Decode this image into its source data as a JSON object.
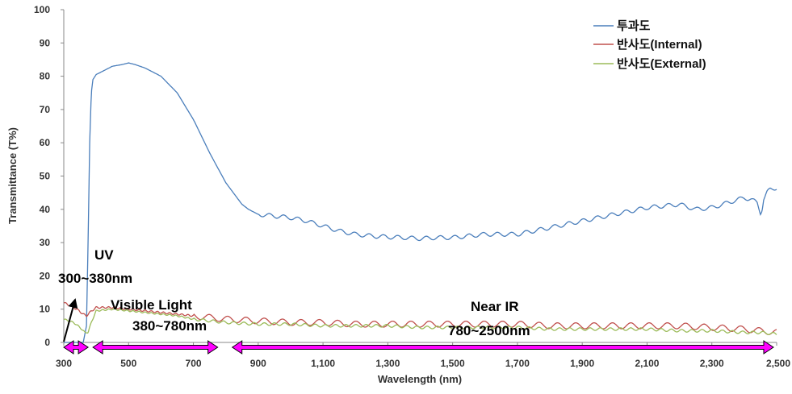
{
  "chart_data": {
    "type": "line",
    "xlabel": "Wavelength (nm)",
    "ylabel": "Transmittance (T%)",
    "xlim": [
      300,
      2500
    ],
    "ylim": [
      0,
      100
    ],
    "x_ticks": [
      300,
      500,
      700,
      900,
      1100,
      1300,
      1500,
      1700,
      1900,
      2100,
      2300,
      2500
    ],
    "x_tick_labels": [
      "300",
      "500",
      "700",
      "900",
      "1,100",
      "1,300",
      "1,500",
      "1,700",
      "1,900",
      "2,100",
      "2,300",
      "2,500"
    ],
    "y_ticks": [
      0,
      10,
      20,
      30,
      40,
      50,
      60,
      70,
      80,
      90,
      100
    ],
    "y_tick_labels": [
      "0",
      "10",
      "20",
      "30",
      "40",
      "50",
      "60",
      "70",
      "80",
      "90",
      "100"
    ],
    "grid": false,
    "legend_position": "top-right",
    "series": [
      {
        "name": "투과도",
        "color": "#4a7ebb",
        "x": [
          300,
          360,
          370,
          375,
          380,
          385,
          390,
          400,
          420,
          450,
          480,
          500,
          520,
          550,
          580,
          600,
          650,
          700,
          750,
          800,
          850,
          870,
          900,
          950,
          1000,
          1050,
          1100,
          1150,
          1200,
          1250,
          1300,
          1350,
          1400,
          1450,
          1500,
          1550,
          1600,
          1650,
          1700,
          1750,
          1800,
          1850,
          1900,
          1950,
          2000,
          2050,
          2100,
          2150,
          2200,
          2250,
          2300,
          2350,
          2400,
          2420,
          2440,
          2450,
          2455,
          2460,
          2470,
          2480,
          2500
        ],
        "y": [
          0,
          0,
          5,
          30,
          60,
          75,
          79,
          80.5,
          81.5,
          83,
          83.5,
          84,
          83.5,
          82.5,
          81,
          80,
          75,
          67,
          57,
          48,
          41.5,
          40,
          38.5,
          38,
          37.5,
          36.5,
          35,
          33.5,
          32.5,
          32,
          31.7,
          31.5,
          31.2,
          31.5,
          31.5,
          32,
          32.5,
          32.5,
          32.5,
          33.5,
          34.5,
          35.5,
          36.5,
          37.5,
          38.5,
          39.5,
          40.5,
          41,
          41.5,
          40,
          40.5,
          42,
          43.5,
          43,
          42,
          39,
          40,
          43,
          45,
          46,
          46.5
        ]
      },
      {
        "name": "반사도(Internal)",
        "color": "#c0504d",
        "x": [
          300,
          340,
          360,
          370,
          380,
          400,
          450,
          500,
          550,
          600,
          650,
          700,
          750,
          800,
          900,
          1000,
          1100,
          1200,
          1300,
          1400,
          1500,
          1600,
          1700,
          1800,
          1900,
          2000,
          2100,
          2200,
          2300,
          2400,
          2450,
          2500
        ],
        "y": [
          12,
          10,
          8.5,
          8,
          9,
          10.5,
          10.5,
          10,
          9.5,
          9,
          8.5,
          8,
          7.5,
          7,
          6.5,
          6,
          6,
          5.5,
          5.5,
          5.5,
          5.5,
          5.5,
          5.5,
          5,
          5,
          5,
          5,
          5,
          4.5,
          4,
          3.5,
          3
        ]
      },
      {
        "name": "반사도(External)",
        "color": "#9bbb59",
        "x": [
          300,
          330,
          350,
          365,
          375,
          385,
          400,
          450,
          500,
          550,
          600,
          650,
          700,
          750,
          800,
          900,
          1000,
          1100,
          1200,
          1300,
          1400,
          1500,
          1600,
          1700,
          1800,
          1900,
          2000,
          2100,
          2200,
          2300,
          2400,
          2450,
          2500
        ],
        "y": [
          7,
          6,
          4.5,
          3,
          3,
          6,
          9.5,
          10,
          9.5,
          9,
          8.5,
          8,
          7,
          6.5,
          6,
          5.5,
          5.5,
          5,
          5,
          5,
          4.5,
          4.5,
          4.5,
          4.5,
          4,
          4,
          4,
          4,
          3.5,
          3.5,
          3,
          3,
          2.5
        ]
      }
    ],
    "annotations": {
      "uv_title": "UV",
      "uv_range": "300~380nm",
      "vis_title": "Visible Light",
      "vis_range": "380~780nm",
      "nir_title": "Near IR",
      "nir_range": "780~2500nm"
    },
    "band_arrows": [
      {
        "name": "uv",
        "from": 300,
        "to": 375
      },
      {
        "name": "visible",
        "from": 390,
        "to": 775
      },
      {
        "name": "near-ir",
        "from": 820,
        "to": 2490
      }
    ],
    "arrow_color": "#ff00ff"
  }
}
